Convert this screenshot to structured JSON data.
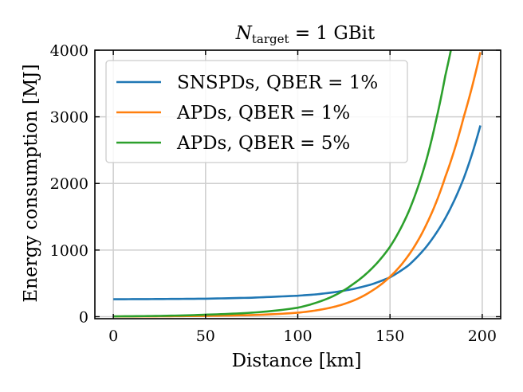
{
  "chart_data": {
    "type": "line",
    "title": "N_target = 1 GBit",
    "title_parts": {
      "symbol": "N",
      "subscript": "target",
      "rest": " = 1 GBit"
    },
    "xlabel": "Distance [km]",
    "ylabel": "Energy consumption [MJ]",
    "xlim": [
      -10,
      210
    ],
    "ylim": [
      -30,
      4000
    ],
    "xticks": [
      0,
      50,
      100,
      150,
      200
    ],
    "yticks": [
      0,
      1000,
      2000,
      3000,
      4000
    ],
    "grid": true,
    "legend_position": "top-left",
    "series": [
      {
        "name": "SNSPDs, QBER = 1%",
        "color": "#1f77b4",
        "x": [
          0,
          25,
          50,
          75,
          100,
          110,
          120,
          130,
          140,
          150,
          160,
          170,
          180,
          190,
          199
        ],
        "y": [
          262,
          265,
          270,
          285,
          315,
          335,
          368,
          415,
          485,
          590,
          770,
          1060,
          1480,
          2080,
          2870
        ]
      },
      {
        "name": "APDs, QBER = 1%",
        "color": "#ff7f0e",
        "x": [
          0,
          25,
          50,
          75,
          100,
          110,
          120,
          130,
          140,
          150,
          160,
          170,
          180,
          190,
          199
        ],
        "y": [
          3,
          6,
          12,
          25,
          60,
          95,
          150,
          240,
          385,
          600,
          920,
          1400,
          2100,
          3000,
          3970
        ]
      },
      {
        "name": "APDs, QBER = 5%",
        "color": "#2ca02c",
        "x": [
          0,
          25,
          50,
          75,
          100,
          110,
          120,
          130,
          140,
          150,
          160,
          170,
          175,
          180,
          183
        ],
        "y": [
          5,
          12,
          30,
          60,
          135,
          210,
          320,
          490,
          720,
          1050,
          1570,
          2380,
          2950,
          3620,
          4000
        ]
      }
    ]
  }
}
